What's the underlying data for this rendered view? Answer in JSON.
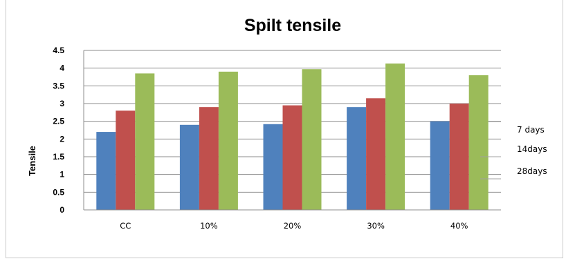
{
  "chart_data": {
    "type": "bar",
    "title": "Spilt tensile",
    "xlabel": "",
    "ylabel": "Tensile",
    "categories": [
      "CC",
      "10%",
      "20%",
      "30%",
      "40%"
    ],
    "series": [
      {
        "name": "7 days",
        "color": "#4f81bd",
        "values": [
          2.2,
          2.4,
          2.42,
          2.9,
          2.5
        ]
      },
      {
        "name": "14days",
        "color": "#c0504d",
        "values": [
          2.8,
          2.9,
          2.95,
          3.15,
          3.0
        ]
      },
      {
        "name": "28days",
        "color": "#9bbb59",
        "values": [
          3.85,
          3.9,
          3.97,
          4.13,
          3.8
        ]
      }
    ],
    "ylim": [
      0,
      4.5
    ],
    "yticks": [
      "0",
      "0.5",
      "1",
      "1.5",
      "2",
      "2.5",
      "3",
      "3.5",
      "4",
      "4.5"
    ],
    "grid": true,
    "legend": "right"
  }
}
